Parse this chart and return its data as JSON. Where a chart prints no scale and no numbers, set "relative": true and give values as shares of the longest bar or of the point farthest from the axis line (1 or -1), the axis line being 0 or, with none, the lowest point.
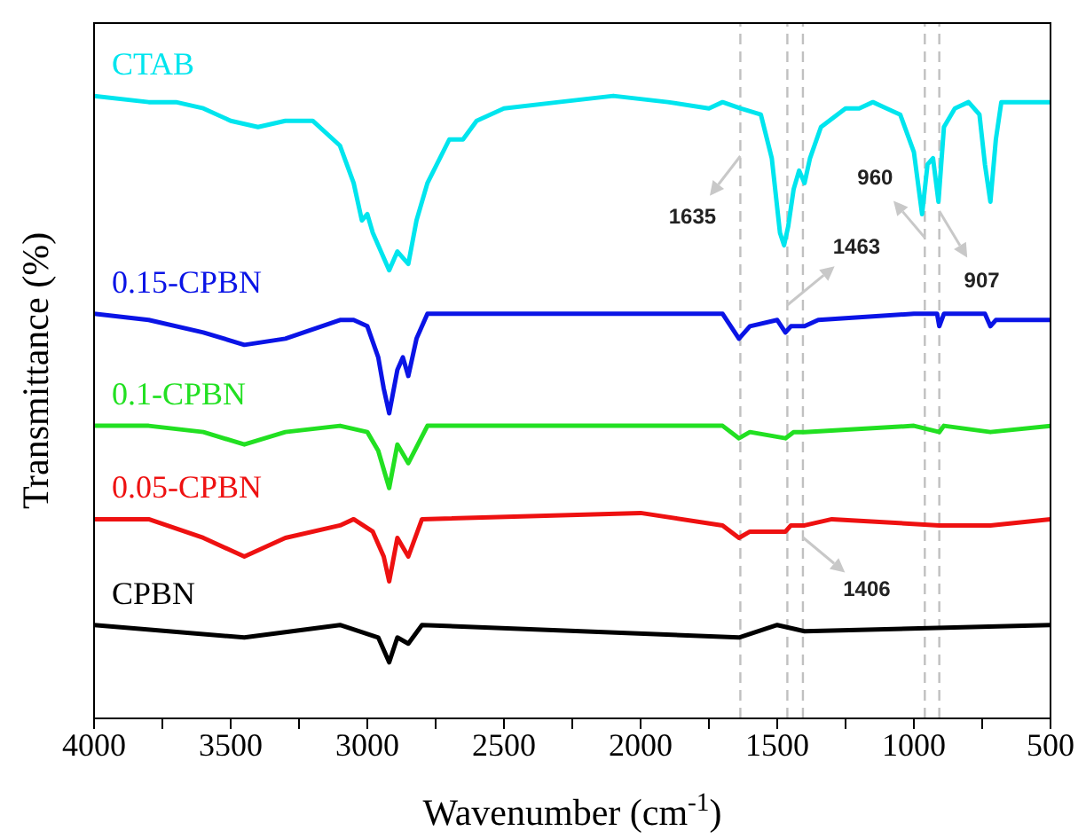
{
  "chart_data": {
    "type": "line",
    "xlabel": "Wavenumber (cm$^{-1}$)",
    "ylabel": "Transmittance (%)",
    "relative": true,
    "line_style": "solid",
    "xlim": [
      4000,
      500
    ],
    "xticks": [
      4000,
      {
        "value": 3750,
        "label": null
      },
      3500,
      {
        "value": 3250,
        "label": null
      },
      3000,
      {
        "value": 2750,
        "label": null
      },
      2500,
      {
        "value": 2250,
        "label": null
      },
      2000,
      {
        "value": 1750,
        "label": null
      },
      1500,
      {
        "value": 1250,
        "label": null
      },
      1000,
      {
        "value": 750,
        "label": null
      },
      500
    ],
    "series": [
      {
        "name": "CTAB",
        "color": "#00e5ee",
        "x": [
          4000,
          3800,
          3700,
          3600,
          3500,
          3400,
          3300,
          3200,
          3100,
          3050,
          3020,
          3000,
          2980,
          2920,
          2890,
          2850,
          2820,
          2780,
          2700,
          2650,
          2600,
          2500,
          2300,
          2100,
          1900,
          1750,
          1700,
          1635,
          1560,
          1520,
          1490,
          1475,
          1460,
          1440,
          1420,
          1400,
          1380,
          1340,
          1250,
          1200,
          1150,
          1100,
          1050,
          1000,
          970,
          950,
          930,
          910,
          890,
          850,
          800,
          760,
          740,
          720,
          700,
          680,
          500
        ],
        "values": [
          1.0,
          0.99,
          0.99,
          0.98,
          0.96,
          0.95,
          0.96,
          0.96,
          0.92,
          0.86,
          0.8,
          0.81,
          0.78,
          0.72,
          0.75,
          0.73,
          0.8,
          0.86,
          0.93,
          0.93,
          0.96,
          0.98,
          0.99,
          1.0,
          0.99,
          0.98,
          0.99,
          0.98,
          0.97,
          0.9,
          0.78,
          0.76,
          0.79,
          0.85,
          0.88,
          0.86,
          0.9,
          0.95,
          0.98,
          0.98,
          0.99,
          0.98,
          0.97,
          0.91,
          0.81,
          0.89,
          0.9,
          0.83,
          0.95,
          0.98,
          0.99,
          0.97,
          0.89,
          0.83,
          0.93,
          0.99,
          0.99
        ]
      },
      {
        "name": "0.15-CPBN",
        "color": "#0a14e6",
        "x": [
          4000,
          3800,
          3600,
          3450,
          3300,
          3100,
          3050,
          3000,
          2960,
          2940,
          2920,
          2890,
          2870,
          2850,
          2820,
          2780,
          2000,
          1700,
          1640,
          1600,
          1500,
          1470,
          1450,
          1400,
          1350,
          1000,
          915,
          907,
          890,
          740,
          720,
          700,
          500
        ],
        "values": [
          0.65,
          0.64,
          0.62,
          0.6,
          0.61,
          0.64,
          0.64,
          0.63,
          0.58,
          0.53,
          0.49,
          0.56,
          0.58,
          0.55,
          0.61,
          0.65,
          0.65,
          0.65,
          0.61,
          0.63,
          0.64,
          0.62,
          0.63,
          0.63,
          0.64,
          0.65,
          0.65,
          0.63,
          0.65,
          0.65,
          0.63,
          0.64,
          0.64
        ]
      },
      {
        "name": "0.1-CPBN",
        "color": "#22e022",
        "x": [
          4000,
          3800,
          3600,
          3450,
          3300,
          3100,
          3000,
          2960,
          2920,
          2890,
          2850,
          2780,
          2000,
          1700,
          1640,
          1600,
          1470,
          1440,
          1400,
          1000,
          907,
          890,
          720,
          500
        ],
        "values": [
          0.47,
          0.47,
          0.46,
          0.44,
          0.46,
          0.47,
          0.46,
          0.43,
          0.37,
          0.44,
          0.41,
          0.47,
          0.47,
          0.47,
          0.45,
          0.46,
          0.45,
          0.46,
          0.46,
          0.47,
          0.46,
          0.47,
          0.46,
          0.47
        ]
      },
      {
        "name": "0.05-CPBN",
        "color": "#ee1111",
        "x": [
          4000,
          3800,
          3600,
          3450,
          3300,
          3100,
          3050,
          2980,
          2940,
          2920,
          2890,
          2850,
          2800,
          2000,
          1700,
          1640,
          1600,
          1470,
          1450,
          1400,
          1300,
          907,
          720,
          500
        ],
        "values": [
          0.32,
          0.32,
          0.29,
          0.26,
          0.29,
          0.31,
          0.32,
          0.3,
          0.26,
          0.22,
          0.29,
          0.26,
          0.32,
          0.33,
          0.31,
          0.29,
          0.3,
          0.3,
          0.31,
          0.31,
          0.32,
          0.31,
          0.31,
          0.32
        ]
      },
      {
        "name": "CPBN",
        "color": "#000000",
        "x": [
          4000,
          3450,
          3100,
          2960,
          2920,
          2890,
          2850,
          2800,
          1640,
          1500,
          1400,
          500
        ],
        "values": [
          0.15,
          0.13,
          0.15,
          0.13,
          0.09,
          0.13,
          0.12,
          0.15,
          0.13,
          0.15,
          0.14,
          0.15
        ]
      }
    ],
    "ref_lines": [
      {
        "axis": "x",
        "value": 1635,
        "color": "#c0c0c0",
        "line_style": "dashed"
      },
      {
        "axis": "x",
        "value": 1463,
        "color": "#c0c0c0",
        "line_style": "dashed"
      },
      {
        "axis": "x",
        "value": 1406,
        "color": "#c0c0c0",
        "line_style": "dashed"
      },
      {
        "axis": "x",
        "value": 960,
        "color": "#c0c0c0",
        "line_style": "dashed"
      },
      {
        "axis": "x",
        "value": 907,
        "color": "#c0c0c0",
        "line_style": "dashed"
      }
    ],
    "annotations": [
      "1635",
      "1463",
      "1406",
      "960",
      "907"
    ]
  }
}
